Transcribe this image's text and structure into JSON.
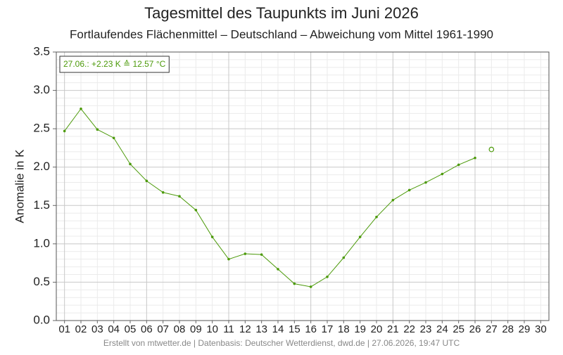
{
  "chart_data": {
    "type": "line",
    "title": "Tagesmittel des Taupunkts im Juni 2026",
    "subtitle": "Fortlaufendes Flächenmittel – Deutschland – Abweichung vom Mittel 1961-1990",
    "y_label": "Anomalie in K",
    "annotation": "27.06.: +2.23 K ≙ 12.57 °C",
    "footer": "Erstellt von mtwetter.de | Datenbasis: Deutscher Wetterdienst, dwd.de | 27.06.2026, 19:47 UTC",
    "categories": [
      "01",
      "02",
      "03",
      "04",
      "05",
      "06",
      "07",
      "08",
      "09",
      "10",
      "11",
      "12",
      "13",
      "14",
      "15",
      "16",
      "17",
      "18",
      "19",
      "20",
      "21",
      "22",
      "23",
      "24",
      "25",
      "26",
      "27",
      "28",
      "29",
      "30"
    ],
    "series": [
      {
        "color": "#4c9a0a",
        "marker": "dot",
        "values": [
          2.47,
          2.76,
          2.49,
          2.38,
          2.04,
          1.82,
          1.67,
          1.62,
          1.44,
          1.09,
          0.8,
          0.87,
          0.86,
          0.67,
          0.48,
          0.44,
          0.57,
          0.82,
          1.09,
          1.35,
          1.57,
          1.7,
          1.8,
          1.91,
          2.03,
          2.12,
          null,
          null,
          null,
          null
        ]
      },
      {
        "color": "#4c9a0a",
        "marker": "open",
        "values": [
          null,
          null,
          null,
          null,
          null,
          null,
          null,
          null,
          null,
          null,
          null,
          null,
          null,
          null,
          null,
          null,
          null,
          null,
          null,
          null,
          null,
          null,
          null,
          null,
          null,
          null,
          2.23,
          null,
          null,
          null
        ]
      }
    ],
    "ylim": [
      0,
      3.5
    ],
    "yticks": [
      {
        "value": 0,
        "label": "0.0"
      },
      0.5,
      {
        "value": 1,
        "label": "1.0"
      },
      1.5,
      {
        "value": 2,
        "label": "2.0"
      },
      2.5,
      {
        "value": 3,
        "label": "3.0"
      },
      3.5
    ],
    "yminorticks": [
      0.1,
      0.2,
      0.3,
      0.4,
      0.6,
      0.7,
      0.8,
      0.9,
      1.1,
      1.2,
      1.3,
      1.4,
      1.6,
      1.7,
      1.8,
      1.9,
      2.1,
      2.2,
      2.3,
      2.4,
      2.6,
      2.7,
      2.8,
      2.9,
      3.1,
      3.2,
      3.3,
      3.4
    ],
    "grid": true
  }
}
